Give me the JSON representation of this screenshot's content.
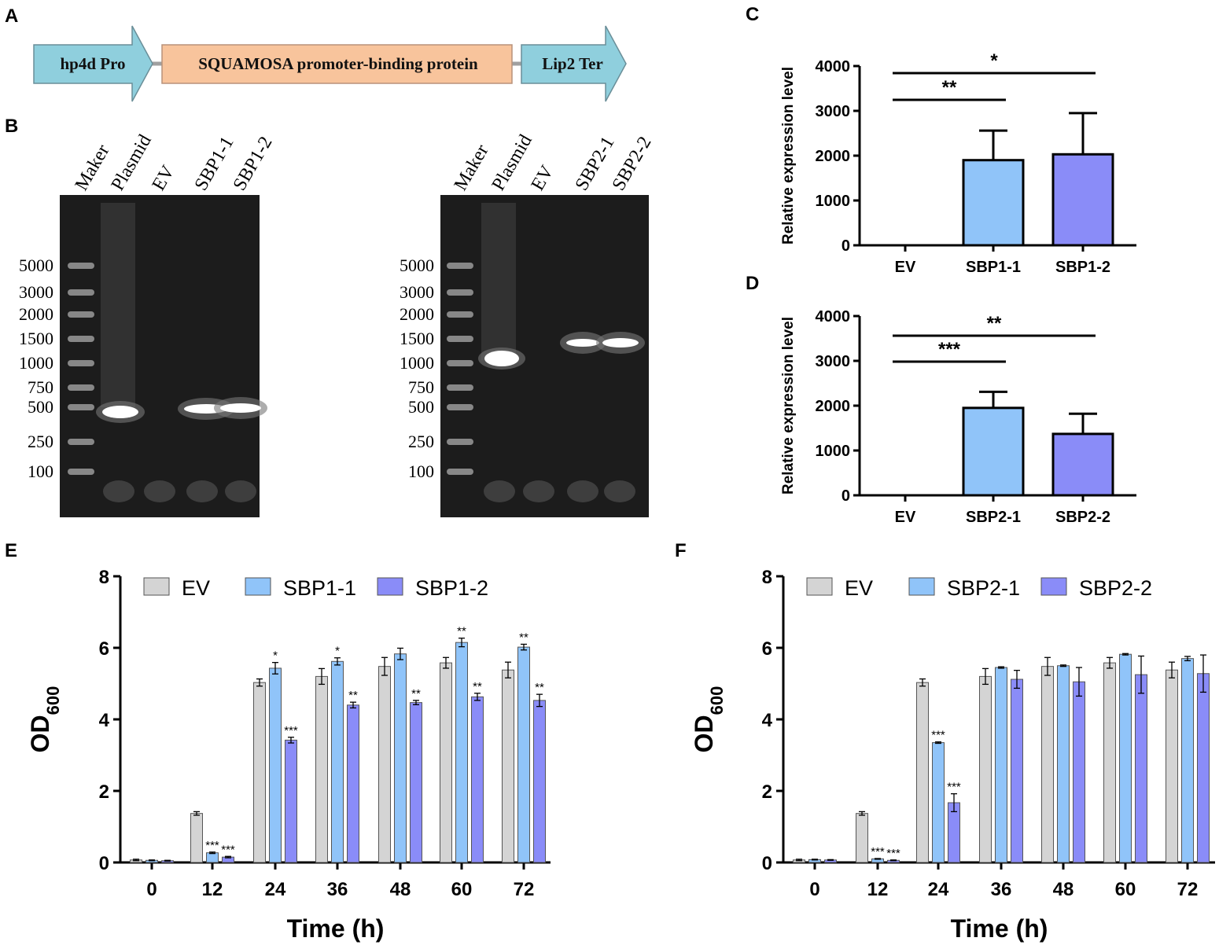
{
  "panels": {
    "A": "A",
    "B": "B",
    "C": "C",
    "D": "D",
    "E": "E",
    "F": "F"
  },
  "construct": {
    "promoter": "hp4d Pro",
    "gene": "SQUAMOSA promoter-binding protein",
    "terminator": "Lip2 Ter",
    "colors": {
      "arrow": "#8fcfdd",
      "gene": "#f8c49c"
    }
  },
  "gels": {
    "left": {
      "lanes": [
        "Maker",
        "Plasmid",
        "EV",
        "SBP1-1",
        "SBP1-2"
      ]
    },
    "right": {
      "lanes": [
        "Maker",
        "Plasmid",
        "EV",
        "SBP2-1",
        "SBP2-2"
      ]
    },
    "ladder": [
      "5000",
      "3000",
      "2000",
      "1500",
      "1000",
      "750",
      "500",
      "250",
      "100"
    ]
  },
  "chart_data": [
    {
      "id": "C",
      "type": "bar",
      "ylabel": "Relative expression level",
      "ylim": [
        0,
        4000
      ],
      "yticks": [
        "0",
        "1000",
        "2000",
        "3000",
        "4000"
      ],
      "categories": [
        "EV",
        "SBP1-1",
        "SBP1-2"
      ],
      "values": [
        0,
        1900,
        2030
      ],
      "errors": [
        0,
        660,
        920
      ],
      "colors": [
        "#ffffff",
        "#90c4f9",
        "#8a8cf8"
      ],
      "significance": [
        {
          "from": "EV",
          "to": "SBP1-1",
          "label": "**"
        },
        {
          "from": "EV",
          "to": "SBP1-2",
          "label": "*"
        }
      ]
    },
    {
      "id": "D",
      "type": "bar",
      "ylabel": "Relative expression level",
      "ylim": [
        0,
        4000
      ],
      "yticks": [
        "0",
        "1000",
        "2000",
        "3000",
        "4000"
      ],
      "categories": [
        "EV",
        "SBP2-1",
        "SBP2-2"
      ],
      "values": [
        0,
        1950,
        1370
      ],
      "errors": [
        0,
        360,
        450
      ],
      "colors": [
        "#ffffff",
        "#90c4f9",
        "#8a8cf8"
      ],
      "significance": [
        {
          "from": "EV",
          "to": "SBP2-1",
          "label": "***"
        },
        {
          "from": "EV",
          "to": "SBP2-2",
          "label": "**"
        }
      ]
    },
    {
      "id": "E",
      "type": "bar",
      "xlabel": "Time (h)",
      "ylabel": "OD",
      "ylabel_sub": "600",
      "ylim": [
        0,
        8
      ],
      "yticks": [
        "0",
        "2",
        "4",
        "6",
        "8"
      ],
      "categories": [
        "0",
        "12",
        "24",
        "36",
        "48",
        "60",
        "72"
      ],
      "series": [
        {
          "name": "EV",
          "color": "#d4d4d4",
          "values": [
            0.07,
            1.37,
            5.03,
            5.2,
            5.48,
            5.58,
            5.38
          ],
          "errors": [
            0.02,
            0.05,
            0.1,
            0.22,
            0.25,
            0.15,
            0.22
          ],
          "stars": [
            "",
            "",
            "",
            "",
            "",
            "",
            ""
          ]
        },
        {
          "name": "SBP1-1",
          "color": "#90c4f9",
          "values": [
            0.06,
            0.27,
            5.43,
            5.62,
            5.83,
            6.15,
            6.02
          ],
          "errors": [
            0.01,
            0.02,
            0.16,
            0.1,
            0.16,
            0.12,
            0.08
          ],
          "stars": [
            "",
            "***",
            "*",
            "*",
            "",
            "**",
            "**"
          ]
        },
        {
          "name": "SBP1-2",
          "color": "#8a8cf8",
          "values": [
            0.05,
            0.15,
            3.42,
            4.4,
            4.47,
            4.63,
            4.53
          ],
          "errors": [
            0.01,
            0.02,
            0.08,
            0.08,
            0.06,
            0.1,
            0.17
          ],
          "stars": [
            "",
            "***",
            "***",
            "**",
            "**",
            "**",
            "**"
          ]
        }
      ]
    },
    {
      "id": "F",
      "type": "bar",
      "xlabel": "Time (h)",
      "ylabel": "OD",
      "ylabel_sub": "600",
      "ylim": [
        0,
        8
      ],
      "yticks": [
        "0",
        "2",
        "4",
        "6",
        "8"
      ],
      "categories": [
        "0",
        "12",
        "24",
        "36",
        "48",
        "60",
        "72"
      ],
      "series": [
        {
          "name": "EV",
          "color": "#d4d4d4",
          "values": [
            0.07,
            1.37,
            5.03,
            5.2,
            5.48,
            5.58,
            5.38
          ],
          "errors": [
            0.02,
            0.05,
            0.1,
            0.22,
            0.25,
            0.15,
            0.22
          ],
          "stars": [
            "",
            "",
            "",
            "",
            "",
            "",
            ""
          ]
        },
        {
          "name": "SBP2-1",
          "color": "#90c4f9",
          "values": [
            0.08,
            0.1,
            3.35,
            5.45,
            5.5,
            5.82,
            5.7
          ],
          "errors": [
            0.01,
            0.01,
            0.02,
            0.02,
            0.02,
            0.02,
            0.06
          ],
          "stars": [
            "",
            "***",
            "***",
            "",
            "",
            "",
            ""
          ]
        },
        {
          "name": "SBP2-2",
          "color": "#8a8cf8",
          "values": [
            0.07,
            0.06,
            1.67,
            5.12,
            5.05,
            5.25,
            5.28
          ],
          "errors": [
            0.01,
            0.01,
            0.25,
            0.25,
            0.4,
            0.52,
            0.52
          ],
          "stars": [
            "",
            "***",
            "***",
            "",
            "",
            "",
            ""
          ]
        }
      ]
    }
  ]
}
